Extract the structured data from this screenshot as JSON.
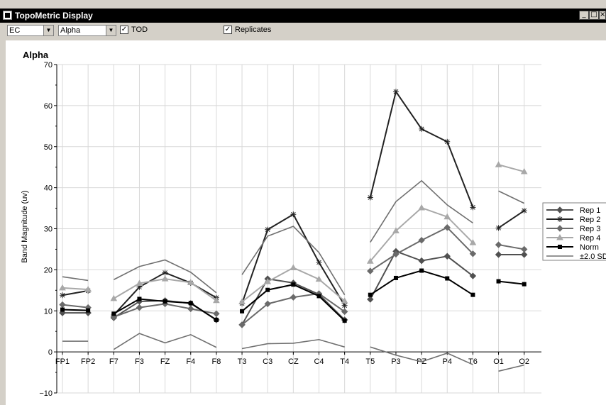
{
  "window": {
    "title": "TopoMetric Display",
    "controls": {
      "minimize": "_",
      "maximize": "□",
      "close": "×"
    }
  },
  "toolbar": {
    "condition_select": "EC",
    "band_select": "Alpha",
    "tod_label": "TOD",
    "tod_checked": true,
    "replicates_label": "Replicates",
    "replicates_checked": true
  },
  "chart_data": {
    "type": "line",
    "title": "Alpha",
    "xlabel": "",
    "ylabel": "Band Magnitude (uv)",
    "ylim": [
      -10,
      70
    ],
    "yticks": [
      -10,
      0,
      10,
      20,
      30,
      40,
      50,
      60,
      70
    ],
    "categories": [
      "FP1",
      "FP2",
      "F7",
      "F3",
      "FZ",
      "F4",
      "F8",
      "T3",
      "C3",
      "CZ",
      "C4",
      "T4",
      "T5",
      "P3",
      "PZ",
      "P4",
      "T6",
      "O1",
      "O2"
    ],
    "grid": true,
    "legend_position": "right",
    "groups": [
      [
        0,
        1
      ],
      [
        2,
        3,
        4,
        5,
        6
      ],
      [
        7,
        8,
        9,
        10,
        11
      ],
      [
        12,
        13,
        14,
        15,
        16
      ],
      [
        17,
        18
      ]
    ],
    "series": [
      {
        "name": "Rep 1",
        "marker": "diamond",
        "color": "#505050",
        "values": [
          9.5,
          9.5,
          8.3,
          12.3,
          12.5,
          11.8,
          7.8,
          6.6,
          17.8,
          16.8,
          14.0,
          7.8,
          12.8,
          24.5,
          22.2,
          23.3,
          18.5,
          23.7,
          23.7
        ]
      },
      {
        "name": "Rep 2",
        "marker": "star",
        "color": "#222222",
        "values": [
          13.8,
          14.9,
          9.0,
          15.8,
          19.3,
          16.8,
          13.2,
          11.8,
          29.8,
          33.5,
          21.8,
          11.3,
          37.6,
          63.4,
          54.3,
          51.2,
          35.2,
          30.2,
          34.4
        ]
      },
      {
        "name": "Rep 3",
        "marker": "diamond",
        "color": "#6a6a6a",
        "values": [
          11.5,
          10.8,
          8.5,
          10.8,
          11.7,
          10.5,
          9.3,
          6.6,
          11.7,
          13.3,
          14.2,
          9.8,
          19.7,
          23.8,
          27.2,
          30.3,
          23.9,
          26.1,
          25.0
        ]
      },
      {
        "name": "Rep 4",
        "marker": "triangle",
        "color": "#a8a8a8",
        "values": [
          15.6,
          15.2,
          13.0,
          16.7,
          17.8,
          16.9,
          12.5,
          12.2,
          17.1,
          20.5,
          17.7,
          12.4,
          22.1,
          29.5,
          35.1,
          32.9,
          26.6,
          45.6,
          43.9
        ]
      },
      {
        "name": "Norm",
        "marker": "square",
        "color": "#000000",
        "values": [
          10.3,
          10.1,
          9.3,
          12.9,
          12.3,
          11.9,
          7.8,
          9.9,
          15.1,
          16.4,
          13.6,
          7.6,
          13.9,
          18.0,
          19.8,
          17.9,
          13.9,
          17.2,
          16.5
        ]
      },
      {
        "name": "±2.0 SD",
        "marker": "none",
        "color": "#707070",
        "values": [
          18.3,
          17.4,
          17.6,
          20.8,
          22.4,
          19.4,
          14.4,
          18.8,
          28.2,
          30.6,
          24.2,
          13.9,
          26.7,
          36.6,
          41.7,
          35.8,
          31.4,
          39.2,
          36.2
        ]
      },
      {
        "name": "",
        "marker": "none",
        "color": "#707070",
        "values": [
          2.6,
          2.6,
          0.6,
          4.5,
          2.2,
          4.2,
          1.1,
          0.8,
          2.0,
          2.1,
          3.0,
          1.2,
          1.2,
          -0.8,
          -2.4,
          -0.3,
          -3.1,
          -4.7,
          -3.2
        ]
      }
    ]
  }
}
